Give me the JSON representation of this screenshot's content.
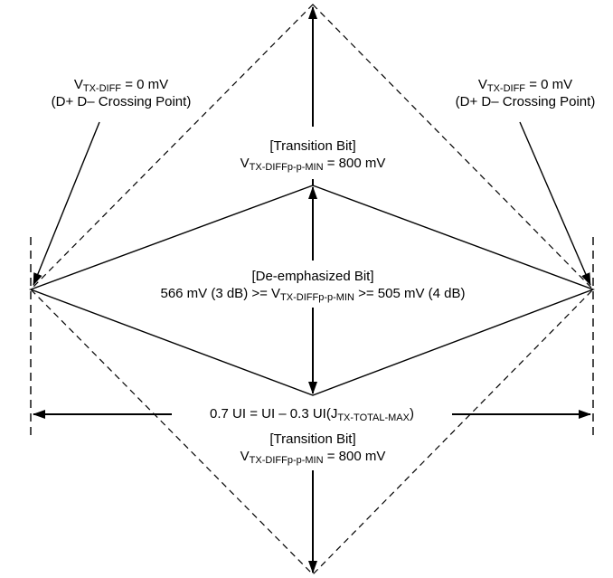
{
  "diagram": {
    "left_crossing": {
      "v_prefix": "V",
      "v_sub": "TX-DIFF",
      "v_value": " = 0 mV",
      "note": "(D+ D– Crossing Point)"
    },
    "right_crossing": {
      "v_prefix": "V",
      "v_sub": "TX-DIFF",
      "v_value": " = 0 mV",
      "note": "(D+ D– Crossing Point)"
    },
    "top_transition": {
      "title": "[Transition Bit]",
      "v_prefix": "V",
      "v_sub": "TX-DIFFp-p-MIN",
      "v_value": " = 800 mV"
    },
    "deemphasized": {
      "title": "[De-emphasized Bit]",
      "lead": "566 mV (3 dB) >= V",
      "v_sub": "TX-DIFFp-p-MIN",
      "tail": " >= 505 mV (4 dB)"
    },
    "ui_width": {
      "prefix": "0.7 UI = UI – 0.3 UI(J",
      "sub": "TX-TOTAL-MAX",
      "suffix": ")"
    },
    "bottom_transition": {
      "title": "[Transition Bit]",
      "v_prefix": "V",
      "v_sub": "TX-DIFFp-p-MIN",
      "v_value": " = 800 mV"
    }
  }
}
